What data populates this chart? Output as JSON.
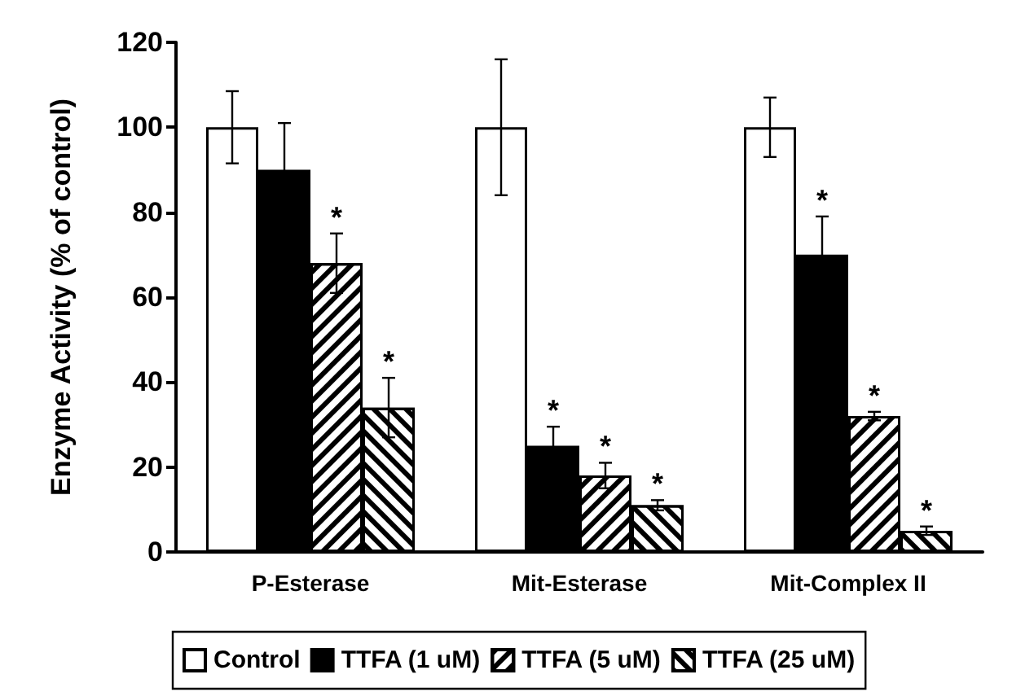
{
  "chart_data": {
    "type": "bar",
    "ylabel": "Enzyme Activity (% of control)",
    "categories": [
      "P-Esterase",
      "Mit-Esterase",
      "Mit-Complex II"
    ],
    "series": [
      {
        "name": "Control",
        "color": "#ffffff",
        "values": [
          100,
          100,
          100
        ],
        "errors": [
          8.5,
          16,
          7
        ],
        "value_labels": [
          null,
          null,
          null
        ]
      },
      {
        "name": "TTFA (1 uM)",
        "color": "#000000",
        "values": [
          90,
          25,
          70
        ],
        "errors": [
          11,
          4.5,
          9
        ],
        "value_labels": [
          null,
          "*",
          "*"
        ]
      },
      {
        "name": "TTFA (5 uM)",
        "color": "#ffffff",
        "values": [
          68,
          18,
          32
        ],
        "errors": [
          7,
          3,
          1
        ],
        "value_labels": [
          "*",
          "*",
          "*"
        ]
      },
      {
        "name": "TTFA (25 uM)",
        "color": "#ffffff",
        "values": [
          34,
          11,
          5
        ],
        "errors": [
          7,
          1.2,
          1
        ],
        "value_labels": [
          "*",
          "*",
          "*"
        ]
      }
    ],
    "ylim": [
      0,
      120
    ],
    "yticks": [
      0,
      20,
      40,
      60,
      80,
      100,
      120
    ],
    "grid": false,
    "legend": "bottom"
  }
}
